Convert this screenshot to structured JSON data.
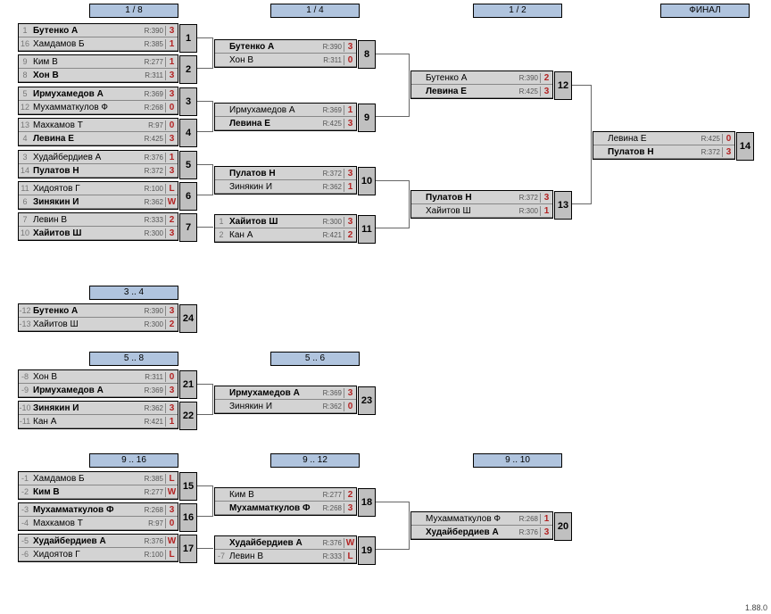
{
  "stages": {
    "s1": "1 / 8",
    "s2": "1 / 4",
    "s3": "1 / 2",
    "s4": "ФИНАЛ",
    "s5": "3 .. 4",
    "s6": "5 .. 8",
    "s7": "5 .. 6",
    "s8": "9 .. 16",
    "s9": "9 .. 12",
    "s10": "9 .. 10"
  },
  "matches": {
    "m1": {
      "num": "1",
      "p1": {
        "seed": "1",
        "name": "Бутенко А",
        "r": "R:390",
        "s": "3",
        "b": true
      },
      "p2": {
        "seed": "16",
        "name": "Хамдамов Б",
        "r": "R:385",
        "s": "1",
        "b": false
      }
    },
    "m2": {
      "num": "2",
      "p1": {
        "seed": "9",
        "name": "Ким В",
        "r": "R:277",
        "s": "1",
        "b": false
      },
      "p2": {
        "seed": "8",
        "name": "Хон В",
        "r": "R:311",
        "s": "3",
        "b": true
      }
    },
    "m3": {
      "num": "3",
      "p1": {
        "seed": "5",
        "name": "Ирмухамедов А",
        "r": "R:369",
        "s": "3",
        "b": true
      },
      "p2": {
        "seed": "12",
        "name": "Мухамматкулов Ф",
        "r": "R:268",
        "s": "0",
        "b": false
      }
    },
    "m4": {
      "num": "4",
      "p1": {
        "seed": "13",
        "name": "Махкамов Т",
        "r": "R:97",
        "s": "0",
        "b": false
      },
      "p2": {
        "seed": "4",
        "name": "Левина Е",
        "r": "R:425",
        "s": "3",
        "b": true
      }
    },
    "m5": {
      "num": "5",
      "p1": {
        "seed": "3",
        "name": "Худайбердиев А",
        "r": "R:376",
        "s": "1",
        "b": false
      },
      "p2": {
        "seed": "14",
        "name": "Пулатов Н",
        "r": "R:372",
        "s": "3",
        "b": true
      }
    },
    "m6": {
      "num": "6",
      "p1": {
        "seed": "11",
        "name": "Хидоятов Г",
        "r": "R:100",
        "s": "L",
        "b": false
      },
      "p2": {
        "seed": "6",
        "name": "Зинякин И",
        "r": "R:362",
        "s": "W",
        "b": true
      }
    },
    "m7": {
      "num": "7",
      "p1": {
        "seed": "7",
        "name": "Левин В",
        "r": "R:333",
        "s": "2",
        "b": false
      },
      "p2": {
        "seed": "10",
        "name": "Хайитов Ш",
        "r": "R:300",
        "s": "3",
        "b": true
      }
    },
    "m8": {
      "num": "8",
      "p1": {
        "seed": "",
        "name": "Бутенко А",
        "r": "R:390",
        "s": "3",
        "b": true
      },
      "p2": {
        "seed": "",
        "name": "Хон В",
        "r": "R:311",
        "s": "0",
        "b": false
      }
    },
    "m9": {
      "num": "9",
      "p1": {
        "seed": "",
        "name": "Ирмухамедов А",
        "r": "R:369",
        "s": "1",
        "b": false
      },
      "p2": {
        "seed": "",
        "name": "Левина Е",
        "r": "R:425",
        "s": "3",
        "b": true
      }
    },
    "m10": {
      "num": "10",
      "p1": {
        "seed": "",
        "name": "Пулатов Н",
        "r": "R:372",
        "s": "3",
        "b": true
      },
      "p2": {
        "seed": "",
        "name": "Зинякин И",
        "r": "R:362",
        "s": "1",
        "b": false
      }
    },
    "m11": {
      "num": "11",
      "p1": {
        "seed": "1",
        "name": "Хайитов Ш",
        "r": "R:300",
        "s": "3",
        "b": true
      },
      "p2": {
        "seed": "2",
        "name": "Кан А",
        "r": "R:421",
        "s": "2",
        "b": false
      }
    },
    "m12": {
      "num": "12",
      "p1": {
        "seed": "",
        "name": "Бутенко А",
        "r": "R:390",
        "s": "2",
        "b": false
      },
      "p2": {
        "seed": "",
        "name": "Левина Е",
        "r": "R:425",
        "s": "3",
        "b": true
      }
    },
    "m13": {
      "num": "13",
      "p1": {
        "seed": "",
        "name": "Пулатов Н",
        "r": "R:372",
        "s": "3",
        "b": true
      },
      "p2": {
        "seed": "",
        "name": "Хайитов Ш",
        "r": "R:300",
        "s": "1",
        "b": false
      }
    },
    "m14": {
      "num": "14",
      "p1": {
        "seed": "",
        "name": "Левина Е",
        "r": "R:425",
        "s": "0",
        "b": false
      },
      "p2": {
        "seed": "",
        "name": "Пулатов Н",
        "r": "R:372",
        "s": "3",
        "b": true
      }
    },
    "m24": {
      "num": "24",
      "p1": {
        "seed": "-12",
        "name": "Бутенко А",
        "r": "R:390",
        "s": "3",
        "b": true
      },
      "p2": {
        "seed": "-13",
        "name": "Хайитов Ш",
        "r": "R:300",
        "s": "2",
        "b": false
      }
    },
    "m21": {
      "num": "21",
      "p1": {
        "seed": "-8",
        "name": "Хон В",
        "r": "R:311",
        "s": "0",
        "b": false
      },
      "p2": {
        "seed": "-9",
        "name": "Ирмухамедов А",
        "r": "R:369",
        "s": "3",
        "b": true
      }
    },
    "m22": {
      "num": "22",
      "p1": {
        "seed": "-10",
        "name": "Зинякин И",
        "r": "R:362",
        "s": "3",
        "b": true
      },
      "p2": {
        "seed": "-11",
        "name": "Кан А",
        "r": "R:421",
        "s": "1",
        "b": false
      }
    },
    "m23": {
      "num": "23",
      "p1": {
        "seed": "",
        "name": "Ирмухамедов А",
        "r": "R:369",
        "s": "3",
        "b": true
      },
      "p2": {
        "seed": "",
        "name": "Зинякин И",
        "r": "R:362",
        "s": "0",
        "b": false
      }
    },
    "m15": {
      "num": "15",
      "p1": {
        "seed": "-1",
        "name": "Хамдамов Б",
        "r": "R:385",
        "s": "L",
        "b": false
      },
      "p2": {
        "seed": "-2",
        "name": "Ким В",
        "r": "R:277",
        "s": "W",
        "b": true
      }
    },
    "m16": {
      "num": "16",
      "p1": {
        "seed": "-3",
        "name": "Мухамматкулов Ф",
        "r": "R:268",
        "s": "3",
        "b": true
      },
      "p2": {
        "seed": "-4",
        "name": "Махкамов Т",
        "r": "R:97",
        "s": "0",
        "b": false
      }
    },
    "m17": {
      "num": "17",
      "p1": {
        "seed": "-5",
        "name": "Худайбердиев А",
        "r": "R:376",
        "s": "W",
        "b": true
      },
      "p2": {
        "seed": "-6",
        "name": "Хидоятов Г",
        "r": "R:100",
        "s": "L",
        "b": false
      }
    },
    "m18": {
      "num": "18",
      "p1": {
        "seed": "",
        "name": "Ким В",
        "r": "R:277",
        "s": "2",
        "b": false
      },
      "p2": {
        "seed": "",
        "name": "Мухамматкулов Ф",
        "r": "R:268",
        "s": "3",
        "b": true
      }
    },
    "m19": {
      "num": "19",
      "p1": {
        "seed": "",
        "name": "Худайбердиев А",
        "r": "R:376",
        "s": "W",
        "b": true
      },
      "p2": {
        "seed": "-7",
        "name": "Левин В",
        "r": "R:333",
        "s": "L",
        "b": false
      }
    },
    "m20": {
      "num": "20",
      "p1": {
        "seed": "",
        "name": "Мухамматкулов Ф",
        "r": "R:268",
        "s": "1",
        "b": false
      },
      "p2": {
        "seed": "",
        "name": "Худайбердиев А",
        "r": "R:376",
        "s": "3",
        "b": true
      }
    }
  },
  "version": "1.88.0"
}
